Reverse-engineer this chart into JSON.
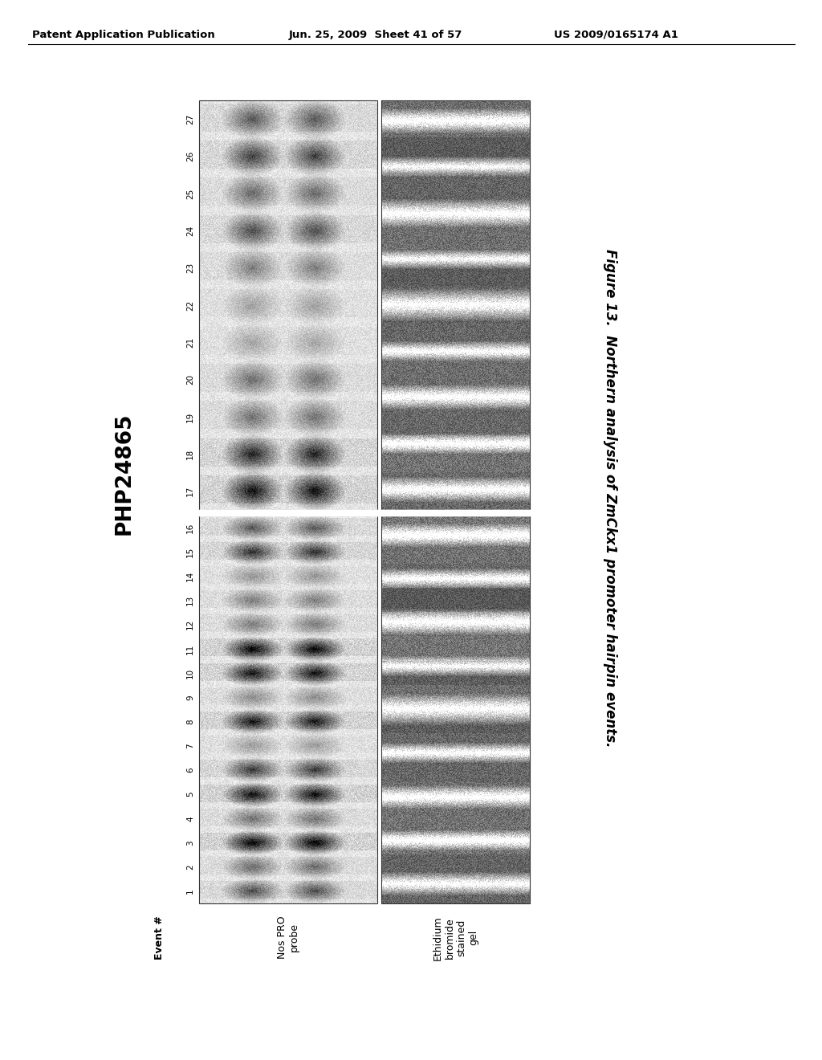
{
  "header_left": "Patent Application Publication",
  "header_center": "Jun. 25, 2009  Sheet 41 of 57",
  "header_right": "US 2009/0165174 A1",
  "php_label": "PHP24865",
  "figure_caption": "Figure 13.  Northern analysis of ZmCkx1 promoter hairpin events.",
  "event_label": "Event #",
  "nos_pro_label": "Nos PRO\nprobe",
  "ethidium_label": "Ethidium\nbromide\nstained\ngel",
  "lane_numbers_left": [
    "1",
    "2",
    "3",
    "4",
    "5",
    "6",
    "7",
    "8",
    "9",
    "10",
    "11",
    "12",
    "13",
    "14",
    "15",
    "16"
  ],
  "lane_numbers_right": [
    "17",
    "18",
    "19",
    "20",
    "21",
    "22",
    "23",
    "24",
    "25",
    "26",
    "27"
  ],
  "bg_color": "#ffffff"
}
